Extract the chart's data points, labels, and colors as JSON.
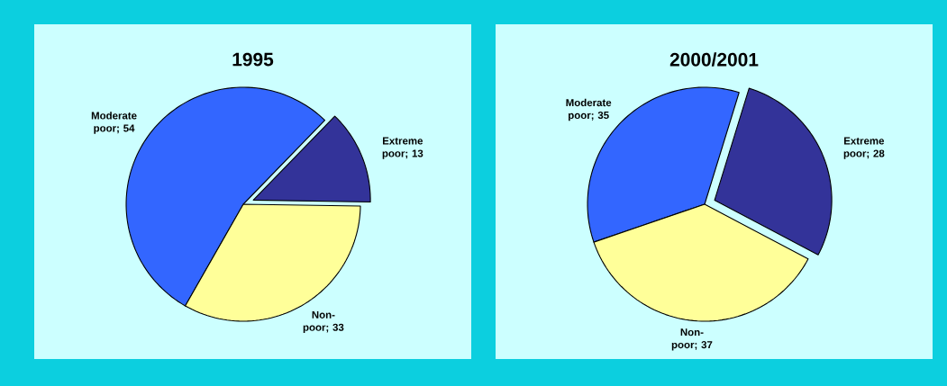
{
  "chart_data": [
    {
      "type": "pie",
      "title": "1995",
      "categories": [
        "Extreme poor",
        "Moderate poor",
        "Non-poor"
      ],
      "values": [
        13,
        54,
        33
      ],
      "colors": [
        "#333399",
        "#3366ff",
        "#ffff99"
      ],
      "data_labels": true,
      "value_labels": [
        "; 13",
        "; 54",
        "; 33"
      ]
    },
    {
      "type": "pie",
      "title": "2000/2001",
      "categories": [
        "Extreme poor",
        "Moderate poor",
        "Non-poor"
      ],
      "values": [
        28,
        35,
        37
      ],
      "colors": [
        "#333399",
        "#3366ff",
        "#ffff99"
      ],
      "data_labels": true,
      "value_labels": [
        "; 28",
        "; 35",
        "; 37"
      ]
    }
  ]
}
